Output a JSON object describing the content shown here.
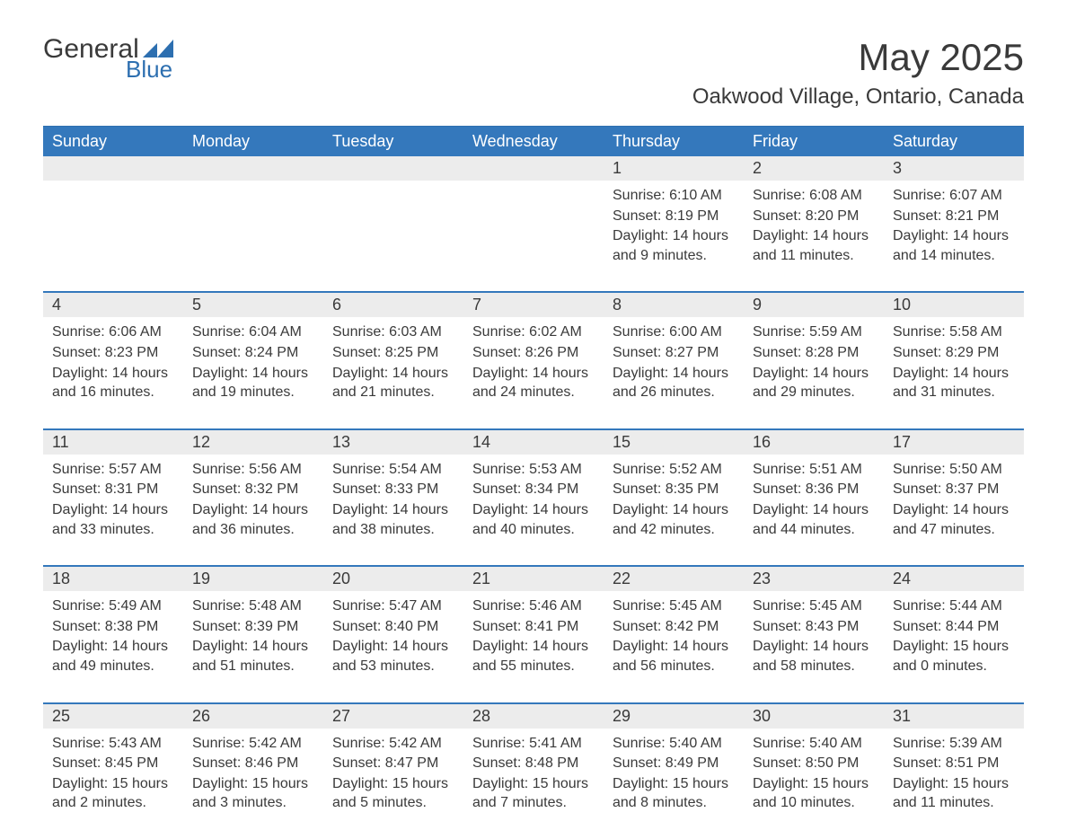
{
  "brand": {
    "name": "General",
    "sub": "Blue",
    "accent": "#2d6fb0"
  },
  "title": "May 2025",
  "location": "Oakwood Village, Ontario, Canada",
  "colors": {
    "header_bg": "#3478bc",
    "header_text": "#ffffff",
    "daynum_bg": "#ececec",
    "text": "#3a3a3a",
    "week_border": "#3478bc",
    "page_bg": "#ffffff"
  },
  "typography": {
    "title_fontsize": 42,
    "subtitle_fontsize": 24,
    "dow_fontsize": 18,
    "daynum_fontsize": 18,
    "body_fontsize": 16
  },
  "layout": {
    "columns": 7,
    "rows": 5
  },
  "days_of_week": [
    "Sunday",
    "Monday",
    "Tuesday",
    "Wednesday",
    "Thursday",
    "Friday",
    "Saturday"
  ],
  "weeks": [
    [
      null,
      null,
      null,
      null,
      {
        "n": "1",
        "sunrise": "6:10 AM",
        "sunset": "8:19 PM",
        "daylight": "14 hours and 9 minutes."
      },
      {
        "n": "2",
        "sunrise": "6:08 AM",
        "sunset": "8:20 PM",
        "daylight": "14 hours and 11 minutes."
      },
      {
        "n": "3",
        "sunrise": "6:07 AM",
        "sunset": "8:21 PM",
        "daylight": "14 hours and 14 minutes."
      }
    ],
    [
      {
        "n": "4",
        "sunrise": "6:06 AM",
        "sunset": "8:23 PM",
        "daylight": "14 hours and 16 minutes."
      },
      {
        "n": "5",
        "sunrise": "6:04 AM",
        "sunset": "8:24 PM",
        "daylight": "14 hours and 19 minutes."
      },
      {
        "n": "6",
        "sunrise": "6:03 AM",
        "sunset": "8:25 PM",
        "daylight": "14 hours and 21 minutes."
      },
      {
        "n": "7",
        "sunrise": "6:02 AM",
        "sunset": "8:26 PM",
        "daylight": "14 hours and 24 minutes."
      },
      {
        "n": "8",
        "sunrise": "6:00 AM",
        "sunset": "8:27 PM",
        "daylight": "14 hours and 26 minutes."
      },
      {
        "n": "9",
        "sunrise": "5:59 AM",
        "sunset": "8:28 PM",
        "daylight": "14 hours and 29 minutes."
      },
      {
        "n": "10",
        "sunrise": "5:58 AM",
        "sunset": "8:29 PM",
        "daylight": "14 hours and 31 minutes."
      }
    ],
    [
      {
        "n": "11",
        "sunrise": "5:57 AM",
        "sunset": "8:31 PM",
        "daylight": "14 hours and 33 minutes."
      },
      {
        "n": "12",
        "sunrise": "5:56 AM",
        "sunset": "8:32 PM",
        "daylight": "14 hours and 36 minutes."
      },
      {
        "n": "13",
        "sunrise": "5:54 AM",
        "sunset": "8:33 PM",
        "daylight": "14 hours and 38 minutes."
      },
      {
        "n": "14",
        "sunrise": "5:53 AM",
        "sunset": "8:34 PM",
        "daylight": "14 hours and 40 minutes."
      },
      {
        "n": "15",
        "sunrise": "5:52 AM",
        "sunset": "8:35 PM",
        "daylight": "14 hours and 42 minutes."
      },
      {
        "n": "16",
        "sunrise": "5:51 AM",
        "sunset": "8:36 PM",
        "daylight": "14 hours and 44 minutes."
      },
      {
        "n": "17",
        "sunrise": "5:50 AM",
        "sunset": "8:37 PM",
        "daylight": "14 hours and 47 minutes."
      }
    ],
    [
      {
        "n": "18",
        "sunrise": "5:49 AM",
        "sunset": "8:38 PM",
        "daylight": "14 hours and 49 minutes."
      },
      {
        "n": "19",
        "sunrise": "5:48 AM",
        "sunset": "8:39 PM",
        "daylight": "14 hours and 51 minutes."
      },
      {
        "n": "20",
        "sunrise": "5:47 AM",
        "sunset": "8:40 PM",
        "daylight": "14 hours and 53 minutes."
      },
      {
        "n": "21",
        "sunrise": "5:46 AM",
        "sunset": "8:41 PM",
        "daylight": "14 hours and 55 minutes."
      },
      {
        "n": "22",
        "sunrise": "5:45 AM",
        "sunset": "8:42 PM",
        "daylight": "14 hours and 56 minutes."
      },
      {
        "n": "23",
        "sunrise": "5:45 AM",
        "sunset": "8:43 PM",
        "daylight": "14 hours and 58 minutes."
      },
      {
        "n": "24",
        "sunrise": "5:44 AM",
        "sunset": "8:44 PM",
        "daylight": "15 hours and 0 minutes."
      }
    ],
    [
      {
        "n": "25",
        "sunrise": "5:43 AM",
        "sunset": "8:45 PM",
        "daylight": "15 hours and 2 minutes."
      },
      {
        "n": "26",
        "sunrise": "5:42 AM",
        "sunset": "8:46 PM",
        "daylight": "15 hours and 3 minutes."
      },
      {
        "n": "27",
        "sunrise": "5:42 AM",
        "sunset": "8:47 PM",
        "daylight": "15 hours and 5 minutes."
      },
      {
        "n": "28",
        "sunrise": "5:41 AM",
        "sunset": "8:48 PM",
        "daylight": "15 hours and 7 minutes."
      },
      {
        "n": "29",
        "sunrise": "5:40 AM",
        "sunset": "8:49 PM",
        "daylight": "15 hours and 8 minutes."
      },
      {
        "n": "30",
        "sunrise": "5:40 AM",
        "sunset": "8:50 PM",
        "daylight": "15 hours and 10 minutes."
      },
      {
        "n": "31",
        "sunrise": "5:39 AM",
        "sunset": "8:51 PM",
        "daylight": "15 hours and 11 minutes."
      }
    ]
  ],
  "labels": {
    "sunrise": "Sunrise: ",
    "sunset": "Sunset: ",
    "daylight": "Daylight: "
  }
}
